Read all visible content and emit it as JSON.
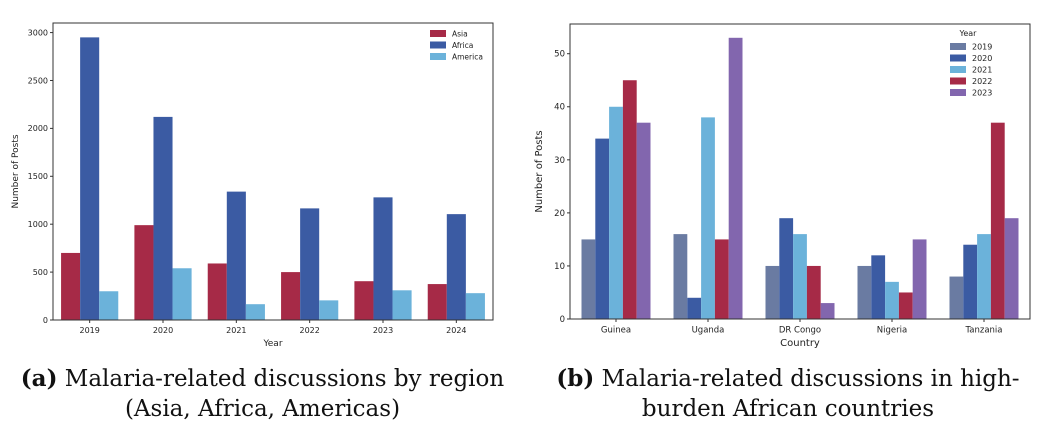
{
  "chart_data": [
    {
      "type": "bar",
      "title": "",
      "xlabel": "Year",
      "ylabel": "Number of Posts",
      "ylim": [
        0,
        3100
      ],
      "yticks": [
        0,
        500,
        1000,
        1500,
        2000,
        2500,
        3000
      ],
      "categories": [
        "2019",
        "2020",
        "2021",
        "2022",
        "2023",
        "2024"
      ],
      "legend_position": "top-right",
      "legend_title": "",
      "grid": false,
      "series": [
        {
          "name": "Asia",
          "color": "#A62A47",
          "values": [
            700,
            990,
            590,
            500,
            405,
            375
          ]
        },
        {
          "name": "Africa",
          "color": "#3B5BA3",
          "values": [
            2950,
            2120,
            1340,
            1165,
            1280,
            1105
          ]
        },
        {
          "name": "America",
          "color": "#6BB2DA",
          "values": [
            300,
            540,
            165,
            205,
            310,
            280
          ]
        }
      ]
    },
    {
      "type": "bar",
      "title": "",
      "xlabel": "Country",
      "ylabel": "Number of Posts",
      "ylim": [
        0,
        55.6
      ],
      "yticks": [
        0,
        10,
        20,
        30,
        40,
        50
      ],
      "categories": [
        "Guinea",
        "Uganda",
        "DR Congo",
        "Nigeria",
        "Tanzania"
      ],
      "legend_position": "top-right",
      "legend_title": "Year",
      "grid": false,
      "series": [
        {
          "name": "2019",
          "color": "#6A7BA2",
          "values": [
            15,
            16,
            10,
            10,
            8
          ]
        },
        {
          "name": "2020",
          "color": "#3B5BA3",
          "values": [
            34,
            4,
            19,
            12,
            14
          ]
        },
        {
          "name": "2021",
          "color": "#6BB2DA",
          "values": [
            40,
            38,
            16,
            7,
            16
          ]
        },
        {
          "name": "2022",
          "color": "#A62A47",
          "values": [
            45,
            15,
            10,
            5,
            37
          ]
        },
        {
          "name": "2023",
          "color": "#8266AE",
          "values": [
            37,
            53,
            3,
            15,
            19
          ]
        }
      ]
    }
  ],
  "captions": {
    "a": {
      "label": "(a)",
      "text": "Malaria-related discussions by region (Asia, Africa, Americas)"
    },
    "b": {
      "label": "(b)",
      "text": "Malaria-related discussions in high-burden African countries"
    }
  }
}
